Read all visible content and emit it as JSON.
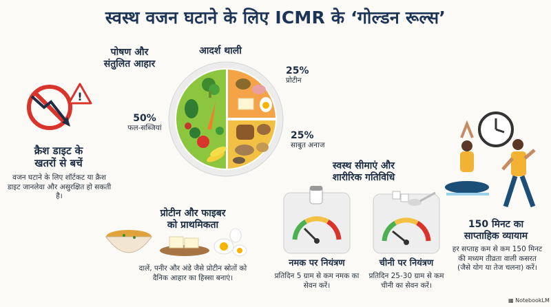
{
  "title": "स्वस्थ वजन घटाने के लिए ICMR के ‘गोल्डन रूल्स’",
  "nutrition": {
    "heading_line1": "पोषण और",
    "heading_line2": "संतुलित आहार"
  },
  "plate": {
    "heading": "आदर्श थाली",
    "veg_pct": "50%",
    "veg_label": "फल-सब्जियां",
    "protein_pct": "25%",
    "protein_label": "प्रोटीन",
    "grain_pct": "25%",
    "grain_label": "साबुत अनाज",
    "colors": {
      "veg": "#8cc63f",
      "protein": "#f5a347",
      "grain": "#f2c144",
      "rim": "#e7e7e7"
    }
  },
  "crash": {
    "heading_line1": "क्रैश डाइट के",
    "heading_line2": "खतरों से बचें",
    "body": "वजन घटाने के लिए शॉर्टकट या क्रैश डाइट जानलेवा और असुरक्षित हो सकती है।"
  },
  "protein_fiber": {
    "heading_line1": "प्रोटीन और फाइबर",
    "heading_line2": "को प्राथमिकता",
    "body": "दालें, पनीर और अंडे जैसे प्रोटीन स्रोतों को दैनिक आहार का हिस्सा बनाएं।"
  },
  "limits": {
    "heading_line1": "स्वस्थ सीमाएं और",
    "heading_line2": "शारीरिक गतिविधि"
  },
  "salt": {
    "heading": "नमक पर नियंत्रण",
    "body": "प्रतिदिन 5 ग्राम से कम नमक का सेवन करें।"
  },
  "sugar": {
    "heading": "चीनी पर नियंत्रण",
    "body": "प्रतिदिन 25-30 ग्राम से कम चीनी का सेवन करें।"
  },
  "exercise": {
    "heading_line1": "150 मिनट का",
    "heading_line2": "साप्ताहिक व्यायाम",
    "body": "हर सप्ताह कम से कम 150 मिनट की मध्यम तीव्रता वाली कसरत (जैसे योग या तेज चलना) करें।"
  },
  "brand": "NotebookLM"
}
